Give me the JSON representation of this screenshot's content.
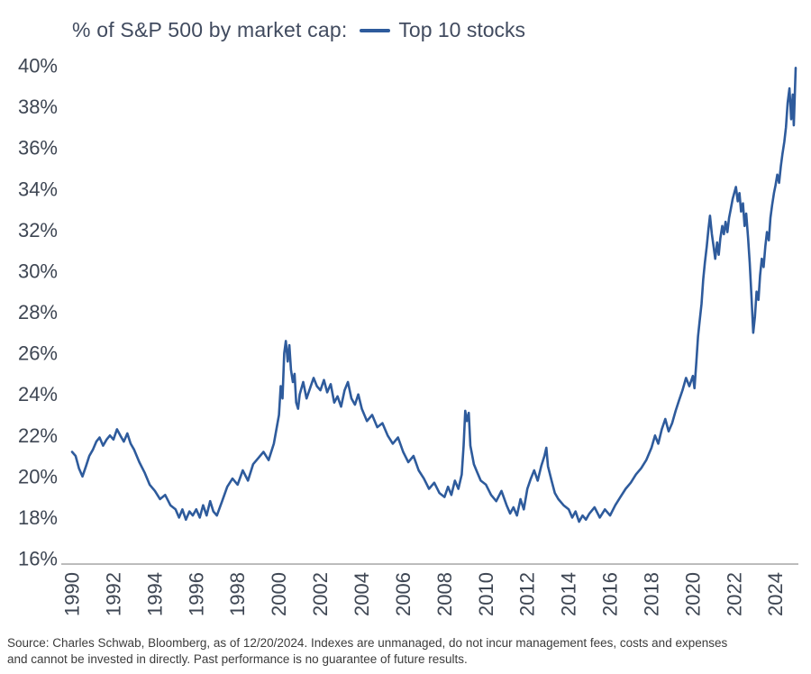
{
  "header": {
    "title": "% of S&P 500 by market cap:",
    "legend_label": "Top 10 stocks"
  },
  "footer": {
    "source_line1": "Source: Charles Schwab, Bloomberg, as of 12/20/2024. Indexes are unmanaged, do not incur management fees, costs and expenses",
    "source_line2": "and cannot be invested in directly. Past performance is no guarantee of future results."
  },
  "chart_data": {
    "type": "line",
    "title": "% of S&P 500 by market cap:",
    "legend_position": "top",
    "grid": false,
    "xlabel": "",
    "ylabel": "",
    "xlim": [
      1990,
      2025.1
    ],
    "ylim": [
      16,
      40
    ],
    "ytick_step": 2,
    "ytick_suffix": "%",
    "xticks": [
      1990,
      1992,
      1994,
      1996,
      1998,
      2000,
      2002,
      2004,
      2006,
      2008,
      2010,
      2012,
      2014,
      2016,
      2018,
      2020,
      2022,
      2024
    ],
    "axis_color": "#a6a6a6",
    "series": [
      {
        "name": "Top 10 stocks",
        "color": "#2e5b9c",
        "points": [
          [
            1990.0,
            21.2
          ],
          [
            1990.17,
            21.0
          ],
          [
            1990.33,
            20.4
          ],
          [
            1990.5,
            20.0
          ],
          [
            1990.67,
            20.5
          ],
          [
            1990.83,
            21.0
          ],
          [
            1991.0,
            21.3
          ],
          [
            1991.17,
            21.7
          ],
          [
            1991.33,
            21.9
          ],
          [
            1991.5,
            21.5
          ],
          [
            1991.67,
            21.8
          ],
          [
            1991.83,
            22.0
          ],
          [
            1992.0,
            21.8
          ],
          [
            1992.17,
            22.3
          ],
          [
            1992.33,
            22.0
          ],
          [
            1992.5,
            21.7
          ],
          [
            1992.67,
            22.1
          ],
          [
            1992.83,
            21.6
          ],
          [
            1993.0,
            21.3
          ],
          [
            1993.25,
            20.7
          ],
          [
            1993.5,
            20.2
          ],
          [
            1993.75,
            19.6
          ],
          [
            1994.0,
            19.3
          ],
          [
            1994.25,
            18.9
          ],
          [
            1994.5,
            19.1
          ],
          [
            1994.75,
            18.6
          ],
          [
            1995.0,
            18.4
          ],
          [
            1995.17,
            18.0
          ],
          [
            1995.33,
            18.4
          ],
          [
            1995.5,
            17.9
          ],
          [
            1995.67,
            18.3
          ],
          [
            1995.83,
            18.1
          ],
          [
            1996.0,
            18.4
          ],
          [
            1996.17,
            18.0
          ],
          [
            1996.33,
            18.6
          ],
          [
            1996.5,
            18.1
          ],
          [
            1996.67,
            18.8
          ],
          [
            1996.83,
            18.3
          ],
          [
            1997.0,
            18.1
          ],
          [
            1997.25,
            18.8
          ],
          [
            1997.5,
            19.5
          ],
          [
            1997.75,
            19.9
          ],
          [
            1998.0,
            19.6
          ],
          [
            1998.25,
            20.3
          ],
          [
            1998.5,
            19.8
          ],
          [
            1998.75,
            20.6
          ],
          [
            1999.0,
            20.9
          ],
          [
            1999.25,
            21.2
          ],
          [
            1999.5,
            20.8
          ],
          [
            1999.75,
            21.6
          ],
          [
            2000.0,
            23.0
          ],
          [
            2000.08,
            24.4
          ],
          [
            2000.17,
            23.8
          ],
          [
            2000.25,
            26.0
          ],
          [
            2000.33,
            26.6
          ],
          [
            2000.42,
            25.6
          ],
          [
            2000.5,
            26.4
          ],
          [
            2000.58,
            25.2
          ],
          [
            2000.67,
            24.6
          ],
          [
            2000.75,
            25.0
          ],
          [
            2000.83,
            23.6
          ],
          [
            2000.92,
            23.3
          ],
          [
            2001.0,
            24.0
          ],
          [
            2001.17,
            24.6
          ],
          [
            2001.33,
            23.8
          ],
          [
            2001.5,
            24.3
          ],
          [
            2001.67,
            24.8
          ],
          [
            2001.83,
            24.4
          ],
          [
            2002.0,
            24.2
          ],
          [
            2002.17,
            24.7
          ],
          [
            2002.33,
            24.1
          ],
          [
            2002.5,
            24.5
          ],
          [
            2002.67,
            23.6
          ],
          [
            2002.83,
            23.9
          ],
          [
            2003.0,
            23.4
          ],
          [
            2003.17,
            24.2
          ],
          [
            2003.33,
            24.6
          ],
          [
            2003.5,
            23.8
          ],
          [
            2003.67,
            23.5
          ],
          [
            2003.83,
            24.0
          ],
          [
            2004.0,
            23.3
          ],
          [
            2004.25,
            22.7
          ],
          [
            2004.5,
            23.0
          ],
          [
            2004.75,
            22.4
          ],
          [
            2005.0,
            22.6
          ],
          [
            2005.25,
            22.0
          ],
          [
            2005.5,
            21.6
          ],
          [
            2005.75,
            21.9
          ],
          [
            2006.0,
            21.2
          ],
          [
            2006.25,
            20.7
          ],
          [
            2006.5,
            21.0
          ],
          [
            2006.75,
            20.3
          ],
          [
            2007.0,
            19.9
          ],
          [
            2007.25,
            19.4
          ],
          [
            2007.5,
            19.7
          ],
          [
            2007.75,
            19.2
          ],
          [
            2008.0,
            19.0
          ],
          [
            2008.17,
            19.5
          ],
          [
            2008.33,
            19.1
          ],
          [
            2008.5,
            19.8
          ],
          [
            2008.67,
            19.4
          ],
          [
            2008.83,
            20.1
          ],
          [
            2008.92,
            21.5
          ],
          [
            2009.0,
            23.2
          ],
          [
            2009.08,
            22.7
          ],
          [
            2009.17,
            23.1
          ],
          [
            2009.25,
            21.5
          ],
          [
            2009.42,
            20.6
          ],
          [
            2009.58,
            20.2
          ],
          [
            2009.75,
            19.8
          ],
          [
            2010.0,
            19.6
          ],
          [
            2010.25,
            19.1
          ],
          [
            2010.5,
            18.8
          ],
          [
            2010.75,
            19.3
          ],
          [
            2011.0,
            18.6
          ],
          [
            2011.17,
            18.2
          ],
          [
            2011.33,
            18.5
          ],
          [
            2011.5,
            18.1
          ],
          [
            2011.67,
            18.9
          ],
          [
            2011.83,
            18.4
          ],
          [
            2012.0,
            19.4
          ],
          [
            2012.17,
            19.9
          ],
          [
            2012.33,
            20.3
          ],
          [
            2012.5,
            19.8
          ],
          [
            2012.67,
            20.5
          ],
          [
            2012.83,
            21.0
          ],
          [
            2012.92,
            21.4
          ],
          [
            2013.0,
            20.5
          ],
          [
            2013.17,
            19.8
          ],
          [
            2013.33,
            19.2
          ],
          [
            2013.5,
            18.9
          ],
          [
            2013.75,
            18.6
          ],
          [
            2014.0,
            18.4
          ],
          [
            2014.17,
            18.0
          ],
          [
            2014.33,
            18.3
          ],
          [
            2014.5,
            17.8
          ],
          [
            2014.67,
            18.1
          ],
          [
            2014.83,
            17.9
          ],
          [
            2015.0,
            18.2
          ],
          [
            2015.25,
            18.5
          ],
          [
            2015.5,
            18.0
          ],
          [
            2015.75,
            18.4
          ],
          [
            2016.0,
            18.1
          ],
          [
            2016.25,
            18.6
          ],
          [
            2016.5,
            19.0
          ],
          [
            2016.75,
            19.4
          ],
          [
            2017.0,
            19.7
          ],
          [
            2017.25,
            20.1
          ],
          [
            2017.5,
            20.4
          ],
          [
            2017.75,
            20.8
          ],
          [
            2018.0,
            21.4
          ],
          [
            2018.17,
            22.0
          ],
          [
            2018.33,
            21.6
          ],
          [
            2018.5,
            22.3
          ],
          [
            2018.67,
            22.8
          ],
          [
            2018.83,
            22.2
          ],
          [
            2019.0,
            22.6
          ],
          [
            2019.17,
            23.2
          ],
          [
            2019.33,
            23.7
          ],
          [
            2019.5,
            24.2
          ],
          [
            2019.67,
            24.8
          ],
          [
            2019.83,
            24.4
          ],
          [
            2020.0,
            24.9
          ],
          [
            2020.08,
            24.3
          ],
          [
            2020.17,
            25.6
          ],
          [
            2020.25,
            26.8
          ],
          [
            2020.33,
            27.6
          ],
          [
            2020.42,
            28.4
          ],
          [
            2020.5,
            29.6
          ],
          [
            2020.58,
            30.4
          ],
          [
            2020.67,
            31.2
          ],
          [
            2020.75,
            32.0
          ],
          [
            2020.83,
            32.7
          ],
          [
            2020.92,
            31.8
          ],
          [
            2021.0,
            31.2
          ],
          [
            2021.08,
            30.6
          ],
          [
            2021.17,
            31.4
          ],
          [
            2021.25,
            30.8
          ],
          [
            2021.33,
            31.6
          ],
          [
            2021.42,
            32.2
          ],
          [
            2021.5,
            31.8
          ],
          [
            2021.58,
            32.4
          ],
          [
            2021.67,
            31.9
          ],
          [
            2021.75,
            32.6
          ],
          [
            2021.83,
            33.0
          ],
          [
            2021.92,
            33.5
          ],
          [
            2022.0,
            33.8
          ],
          [
            2022.08,
            34.1
          ],
          [
            2022.17,
            33.4
          ],
          [
            2022.25,
            33.8
          ],
          [
            2022.33,
            32.9
          ],
          [
            2022.42,
            33.3
          ],
          [
            2022.5,
            32.2
          ],
          [
            2022.58,
            32.8
          ],
          [
            2022.67,
            31.6
          ],
          [
            2022.75,
            30.4
          ],
          [
            2022.83,
            28.8
          ],
          [
            2022.92,
            27.0
          ],
          [
            2023.0,
            27.8
          ],
          [
            2023.08,
            29.0
          ],
          [
            2023.17,
            28.6
          ],
          [
            2023.25,
            29.8
          ],
          [
            2023.33,
            30.6
          ],
          [
            2023.42,
            30.2
          ],
          [
            2023.5,
            31.2
          ],
          [
            2023.58,
            31.9
          ],
          [
            2023.67,
            31.5
          ],
          [
            2023.75,
            32.6
          ],
          [
            2023.83,
            33.2
          ],
          [
            2023.92,
            33.8
          ],
          [
            2024.0,
            34.2
          ],
          [
            2024.08,
            34.7
          ],
          [
            2024.17,
            34.3
          ],
          [
            2024.25,
            35.1
          ],
          [
            2024.33,
            35.7
          ],
          [
            2024.42,
            36.3
          ],
          [
            2024.5,
            37.0
          ],
          [
            2024.58,
            38.2
          ],
          [
            2024.67,
            38.9
          ],
          [
            2024.75,
            37.4
          ],
          [
            2024.83,
            38.6
          ],
          [
            2024.88,
            37.1
          ],
          [
            2024.97,
            39.9
          ]
        ]
      }
    ]
  }
}
